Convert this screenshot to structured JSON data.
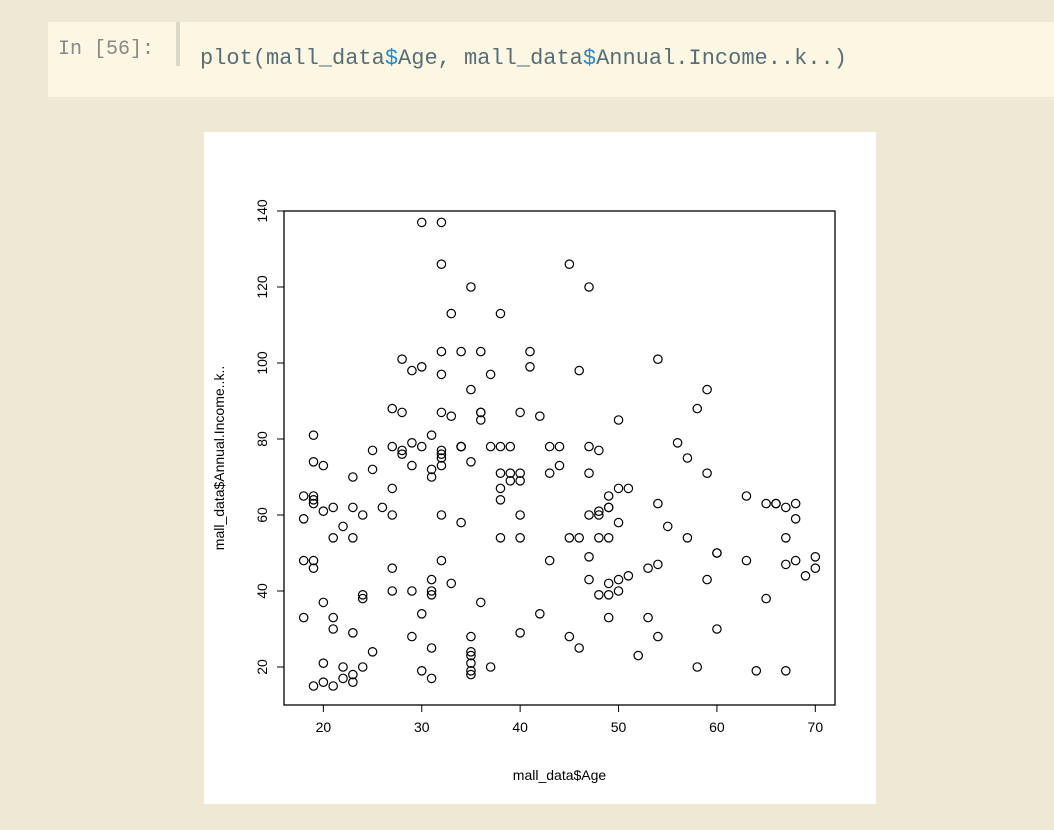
{
  "cell": {
    "prompt": "In [56]:",
    "code_parts": [
      "plot(mall_data",
      "$",
      "Age, mall_data",
      "$",
      "Annual.Income..k..)"
    ]
  },
  "colors": {
    "dollar": "#268bd2",
    "code_text": "#586e75",
    "cell_bg": "#fdf6e3",
    "page_bg": "#eee8d5"
  },
  "chart_data": {
    "type": "scatter",
    "xlabel": "mall_data$Age",
    "ylabel": "mall_data$Annual.Income..k..",
    "xlim": [
      16,
      72
    ],
    "ylim": [
      10,
      140
    ],
    "xticks": [
      20,
      30,
      40,
      50,
      60,
      70
    ],
    "yticks": [
      20,
      40,
      60,
      80,
      100,
      120,
      140
    ],
    "grid": false,
    "marker": "open-circle",
    "points": [
      [
        19,
        15
      ],
      [
        21,
        15
      ],
      [
        20,
        16
      ],
      [
        23,
        16
      ],
      [
        31,
        17
      ],
      [
        22,
        17
      ],
      [
        35,
        18
      ],
      [
        23,
        18
      ],
      [
        64,
        19
      ],
      [
        30,
        19
      ],
      [
        67,
        19
      ],
      [
        35,
        19
      ],
      [
        58,
        20
      ],
      [
        24,
        20
      ],
      [
        37,
        20
      ],
      [
        22,
        20
      ],
      [
        35,
        21
      ],
      [
        20,
        21
      ],
      [
        52,
        23
      ],
      [
        35,
        23
      ],
      [
        35,
        24
      ],
      [
        25,
        24
      ],
      [
        46,
        25
      ],
      [
        31,
        25
      ],
      [
        54,
        28
      ],
      [
        29,
        28
      ],
      [
        45,
        28
      ],
      [
        35,
        28
      ],
      [
        40,
        29
      ],
      [
        23,
        29
      ],
      [
        60,
        30
      ],
      [
        21,
        30
      ],
      [
        53,
        33
      ],
      [
        18,
        33
      ],
      [
        49,
        33
      ],
      [
        21,
        33
      ],
      [
        42,
        34
      ],
      [
        30,
        34
      ],
      [
        36,
        37
      ],
      [
        20,
        37
      ],
      [
        65,
        38
      ],
      [
        24,
        38
      ],
      [
        48,
        39
      ],
      [
        31,
        39
      ],
      [
        49,
        39
      ],
      [
        24,
        39
      ],
      [
        50,
        40
      ],
      [
        27,
        40
      ],
      [
        29,
        40
      ],
      [
        31,
        40
      ],
      [
        49,
        42
      ],
      [
        33,
        42
      ],
      [
        31,
        43
      ],
      [
        59,
        43
      ],
      [
        50,
        43
      ],
      [
        47,
        43
      ],
      [
        51,
        44
      ],
      [
        69,
        44
      ],
      [
        27,
        46
      ],
      [
        53,
        46
      ],
      [
        70,
        46
      ],
      [
        19,
        46
      ],
      [
        67,
        47
      ],
      [
        54,
        47
      ],
      [
        63,
        48
      ],
      [
        18,
        48
      ],
      [
        43,
        48
      ],
      [
        68,
        48
      ],
      [
        19,
        48
      ],
      [
        32,
        48
      ],
      [
        70,
        49
      ],
      [
        47,
        49
      ],
      [
        60,
        50
      ],
      [
        60,
        50
      ],
      [
        45,
        54
      ],
      [
        40,
        54
      ],
      [
        23,
        54
      ],
      [
        49,
        54
      ],
      [
        57,
        54
      ],
      [
        38,
        54
      ],
      [
        67,
        54
      ],
      [
        46,
        54
      ],
      [
        21,
        54
      ],
      [
        48,
        54
      ],
      [
        55,
        57
      ],
      [
        22,
        57
      ],
      [
        34,
        58
      ],
      [
        50,
        58
      ],
      [
        68,
        59
      ],
      [
        18,
        59
      ],
      [
        48,
        60
      ],
      [
        40,
        60
      ],
      [
        32,
        60
      ],
      [
        24,
        60
      ],
      [
        47,
        60
      ],
      [
        27,
        60
      ],
      [
        48,
        61
      ],
      [
        20,
        61
      ],
      [
        23,
        62
      ],
      [
        49,
        62
      ],
      [
        67,
        62
      ],
      [
        26,
        62
      ],
      [
        49,
        62
      ],
      [
        21,
        62
      ],
      [
        66,
        63
      ],
      [
        54,
        63
      ],
      [
        68,
        63
      ],
      [
        66,
        63
      ],
      [
        65,
        63
      ],
      [
        19,
        63
      ],
      [
        38,
        64
      ],
      [
        19,
        64
      ],
      [
        18,
        65
      ],
      [
        19,
        65
      ],
      [
        63,
        65
      ],
      [
        49,
        65
      ],
      [
        51,
        67
      ],
      [
        50,
        67
      ],
      [
        27,
        67
      ],
      [
        38,
        67
      ],
      [
        40,
        69
      ],
      [
        39,
        69
      ],
      [
        23,
        70
      ],
      [
        31,
        70
      ],
      [
        43,
        71
      ],
      [
        40,
        71
      ],
      [
        59,
        71
      ],
      [
        38,
        71
      ],
      [
        47,
        71
      ],
      [
        39,
        71
      ],
      [
        25,
        72
      ],
      [
        31,
        72
      ],
      [
        20,
        73
      ],
      [
        29,
        73
      ],
      [
        44,
        73
      ],
      [
        32,
        73
      ],
      [
        19,
        74
      ],
      [
        35,
        74
      ],
      [
        57,
        75
      ],
      [
        32,
        75
      ],
      [
        28,
        76
      ],
      [
        32,
        76
      ],
      [
        25,
        77
      ],
      [
        28,
        77
      ],
      [
        48,
        77
      ],
      [
        32,
        77
      ],
      [
        34,
        78
      ],
      [
        34,
        78
      ],
      [
        43,
        78
      ],
      [
        39,
        78
      ],
      [
        44,
        78
      ],
      [
        38,
        78
      ],
      [
        47,
        78
      ],
      [
        27,
        78
      ],
      [
        37,
        78
      ],
      [
        30,
        78
      ],
      [
        34,
        78
      ],
      [
        56,
        79
      ],
      [
        29,
        79
      ],
      [
        19,
        81
      ],
      [
        31,
        81
      ],
      [
        50,
        85
      ],
      [
        36,
        85
      ],
      [
        42,
        86
      ],
      [
        33,
        86
      ],
      [
        36,
        87
      ],
      [
        32,
        87
      ],
      [
        40,
        87
      ],
      [
        28,
        87
      ],
      [
        36,
        87
      ],
      [
        58,
        88
      ],
      [
        27,
        88
      ],
      [
        59,
        93
      ],
      [
        35,
        93
      ],
      [
        37,
        97
      ],
      [
        32,
        97
      ],
      [
        46,
        98
      ],
      [
        29,
        98
      ],
      [
        41,
        99
      ],
      [
        30,
        99
      ],
      [
        54,
        101
      ],
      [
        28,
        101
      ],
      [
        41,
        103
      ],
      [
        36,
        103
      ],
      [
        34,
        103
      ],
      [
        32,
        103
      ],
      [
        33,
        113
      ],
      [
        38,
        113
      ],
      [
        47,
        120
      ],
      [
        35,
        120
      ],
      [
        45,
        126
      ],
      [
        32,
        126
      ],
      [
        32,
        137
      ],
      [
        30,
        137
      ]
    ]
  }
}
